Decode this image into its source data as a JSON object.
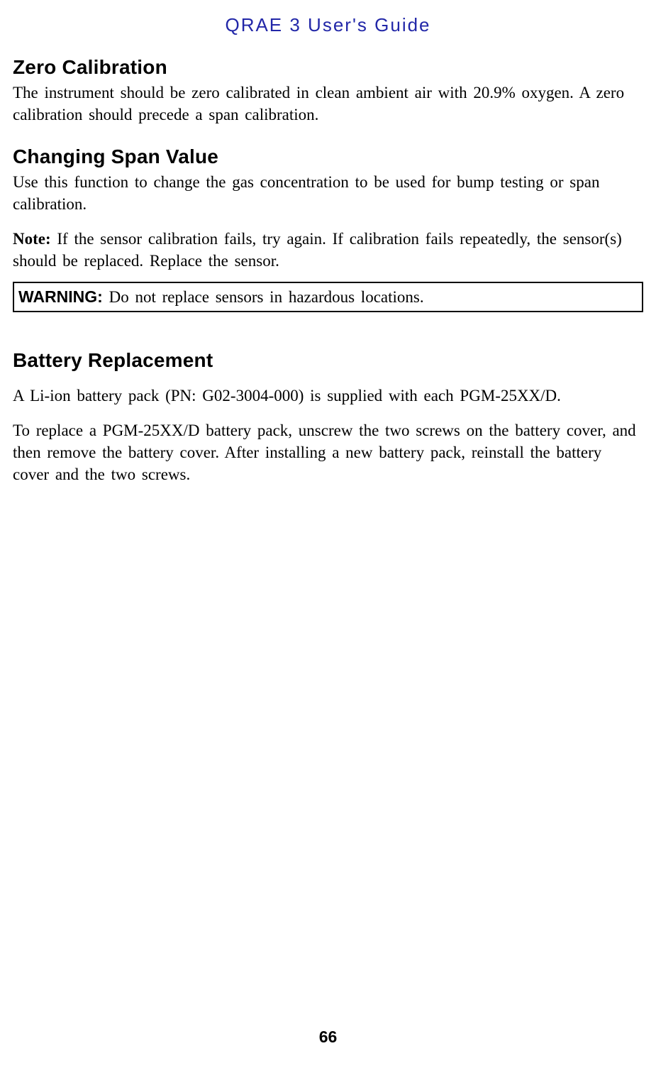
{
  "header": {
    "title": "QRAE 3 User's Guide"
  },
  "sections": {
    "zero": {
      "heading": "Zero Calibration",
      "body": "The instrument should be zero calibrated in clean ambient air with 20.9% oxygen. A zero calibration should precede a span calibration."
    },
    "span": {
      "heading": "Changing Span Value",
      "body": "Use this function to change the gas concentration to be used for bump testing or span calibration."
    },
    "note": {
      "label": "Note:",
      "body": " If the sensor calibration fails, try again. If calibration fails repeatedly, the sensor(s) should be replaced. Replace the sensor."
    },
    "warning": {
      "label": "WARNING:",
      "body": " Do not replace sensors in hazardous locations."
    },
    "battery": {
      "heading": "Battery Replacement",
      "p1": "A Li-ion battery pack (PN: G02-3004-000) is supplied with each PGM-25XX/D.",
      "p2": "To replace a PGM-25XX/D battery pack, unscrew the two screws on the battery cover, and then remove the battery cover. After installing a new battery pack, reinstall the battery cover and the two screws."
    }
  },
  "page_number": "66",
  "colors": {
    "title": "#2227a8",
    "text": "#000000",
    "background": "#ffffff",
    "border": "#000000"
  },
  "typography": {
    "title_fontsize": 26,
    "heading_fontsize": 28,
    "body_fontsize": 23,
    "pagenum_fontsize": 23,
    "heading_font": "Arial",
    "body_font": "Times New Roman"
  }
}
